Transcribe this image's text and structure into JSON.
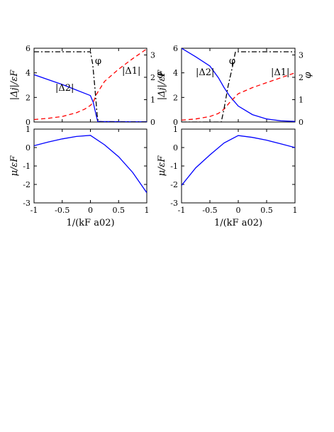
{
  "chart_data": [
    {
      "type": "line",
      "panel": "top-left",
      "ylabel": "|Δj|/εF",
      "ylabel_right": "φ",
      "xlim": [
        -1,
        1
      ],
      "ylim": [
        0,
        6
      ],
      "ylim_right": [
        0,
        3.3
      ],
      "xticks": [
        "",
        "",
        "",
        "",
        ""
      ],
      "yticks": [
        "0",
        "2",
        "4",
        "6"
      ],
      "yticks_right": [
        "0",
        "1",
        "2",
        "3"
      ],
      "annotations": [
        "|Δ2|",
        "φ",
        "|Δ1|"
      ],
      "series": [
        {
          "name": "|Δ2|",
          "axis": "left",
          "color": "#0000ff",
          "dash": "solid",
          "x": [
            -1,
            -0.75,
            -0.5,
            -0.25,
            0,
            0.05,
            0.1,
            0.13,
            0.2,
            0.5,
            0.75,
            1
          ],
          "y": [
            3.85,
            3.45,
            3.05,
            2.6,
            2.15,
            1.6,
            0.6,
            0.05,
            0.04,
            0.03,
            0.02,
            0.02
          ]
        },
        {
          "name": "|Δ1|",
          "axis": "left",
          "color": "#ff0000",
          "dash": "dashed",
          "x": [
            -1,
            -0.75,
            -0.5,
            -0.25,
            -0.1,
            0,
            0.05,
            0.1,
            0.25,
            0.5,
            0.75,
            1
          ],
          "y": [
            0.2,
            0.3,
            0.45,
            0.75,
            1.05,
            1.35,
            1.6,
            2.2,
            3.3,
            4.3,
            5.15,
            5.95
          ]
        },
        {
          "name": "φ",
          "axis": "right",
          "color": "#000000",
          "dash": "dashdot",
          "x": [
            -1,
            0,
            0.04,
            0.08,
            0.12,
            0.14,
            1
          ],
          "y": [
            3.14,
            3.14,
            2.6,
            1.5,
            0.3,
            0,
            0
          ]
        }
      ]
    },
    {
      "type": "line",
      "panel": "bottom-left",
      "ylabel": "μ/εF",
      "xlabel": "1/(kF a02)",
      "xlim": [
        -1,
        1
      ],
      "ylim": [
        -3,
        1
      ],
      "xticks": [
        "-1",
        "-0.5",
        "0",
        "0.5",
        "1"
      ],
      "yticks": [
        "-3",
        "-2",
        "-1",
        "0",
        "1"
      ],
      "series": [
        {
          "name": "μ",
          "axis": "left",
          "color": "#0000ff",
          "dash": "solid",
          "x": [
            -1,
            -0.75,
            -0.5,
            -0.25,
            0,
            0.25,
            0.5,
            0.75,
            1
          ],
          "y": [
            0.1,
            0.3,
            0.47,
            0.6,
            0.66,
            0.15,
            -0.5,
            -1.35,
            -2.45
          ]
        }
      ]
    },
    {
      "type": "line",
      "panel": "top-right",
      "ylabel": "|Δj|/εF",
      "ylabel_right": "φ",
      "xlim": [
        -1,
        1
      ],
      "ylim": [
        0,
        6
      ],
      "ylim_right": [
        0,
        3.3
      ],
      "xticks": [
        "",
        "",
        "",
        "",
        ""
      ],
      "yticks": [
        "0",
        "2",
        "4",
        "6"
      ],
      "yticks_right": [
        "0",
        "1",
        "2",
        "3"
      ],
      "annotations": [
        "|Δ2|",
        "φ",
        "|Δ1|"
      ],
      "series": [
        {
          "name": "|Δ2|",
          "axis": "left",
          "color": "#0000ff",
          "dash": "solid",
          "x": [
            -1,
            -0.75,
            -0.5,
            -0.35,
            -0.25,
            -0.15,
            0,
            0.25,
            0.5,
            0.75,
            1
          ],
          "y": [
            6.0,
            5.3,
            4.55,
            3.6,
            2.8,
            2.1,
            1.3,
            0.6,
            0.25,
            0.1,
            0.05
          ]
        },
        {
          "name": "|Δ1|",
          "axis": "left",
          "color": "#ff0000",
          "dash": "dashed",
          "x": [
            -1,
            -0.75,
            -0.5,
            -0.35,
            -0.25,
            -0.15,
            0,
            0.25,
            0.5,
            0.75,
            1
          ],
          "y": [
            0.15,
            0.25,
            0.45,
            0.7,
            1.05,
            1.6,
            2.3,
            2.8,
            3.2,
            3.6,
            4.0
          ]
        },
        {
          "name": "φ",
          "axis": "right",
          "color": "#000000",
          "dash": "dashdot",
          "x": [
            -1,
            -0.3,
            -0.25,
            -0.18,
            -0.1,
            -0.05,
            1
          ],
          "y": [
            0,
            0,
            0.6,
            1.6,
            2.5,
            3.14,
            3.14
          ]
        }
      ]
    },
    {
      "type": "line",
      "panel": "bottom-right",
      "ylabel": "μ/εF",
      "xlabel": "1/(kF a02)",
      "xlim": [
        -1,
        1
      ],
      "ylim": [
        -3,
        1
      ],
      "xticks": [
        "-1",
        "-0.5",
        "0",
        "0.5",
        "1"
      ],
      "yticks": [
        "-3",
        "-2",
        "-1",
        "0",
        "1"
      ],
      "series": [
        {
          "name": "μ",
          "axis": "left",
          "color": "#0000ff",
          "dash": "solid",
          "x": [
            -1,
            -0.75,
            -0.5,
            -0.25,
            0,
            0.25,
            0.5,
            0.75,
            1
          ],
          "y": [
            -2.05,
            -1.1,
            -0.4,
            0.25,
            0.65,
            0.55,
            0.4,
            0.2,
            0.0
          ]
        }
      ]
    }
  ]
}
